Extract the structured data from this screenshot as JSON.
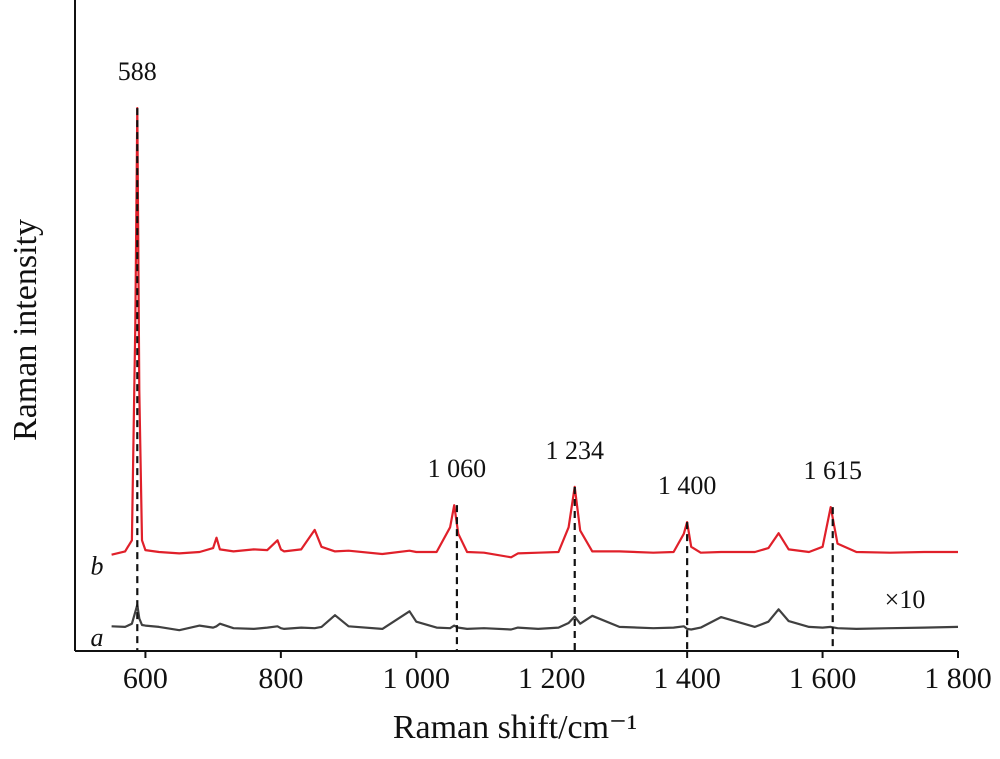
{
  "chart_data": {
    "type": "line",
    "x_label": "Raman shift/cm⁻¹",
    "y_label": "Raman intensity",
    "x": [
      550,
      570,
      580,
      585,
      588,
      591,
      595,
      600,
      620,
      650,
      680,
      700,
      705,
      710,
      730,
      760,
      780,
      795,
      800,
      805,
      830,
      850,
      860,
      880,
      900,
      950,
      990,
      1000,
      1030,
      1050,
      1056,
      1062,
      1075,
      1100,
      1140,
      1150,
      1180,
      1210,
      1225,
      1234,
      1242,
      1260,
      1300,
      1350,
      1380,
      1395,
      1400,
      1406,
      1420,
      1450,
      1500,
      1520,
      1535,
      1550,
      1580,
      1600,
      1612,
      1622,
      1650,
      1700,
      1750,
      1800
    ],
    "series": [
      {
        "name": "b",
        "color": "#e0202a",
        "values": [
          14.8,
          15.3,
          17,
          50,
          83.4,
          40,
          17,
          15.5,
          15.2,
          15,
          15.2,
          15.8,
          17.4,
          15.6,
          15.3,
          15.6,
          15.5,
          17,
          15.6,
          15.3,
          15.6,
          18.6,
          16,
          15.3,
          15.4,
          14.9,
          15.4,
          15.2,
          15.2,
          19,
          22.4,
          18,
          15.2,
          15.1,
          14.4,
          15,
          15.1,
          15.2,
          19,
          25.2,
          18.5,
          15.3,
          15.3,
          15.1,
          15.2,
          18,
          19.8,
          16,
          15.1,
          15.2,
          15.2,
          15.8,
          18.1,
          15.6,
          15.2,
          16,
          22.1,
          16.5,
          15.2,
          15.1,
          15.2,
          15.2
        ]
      },
      {
        "name": "a",
        "color": "#404040",
        "values": [
          3.8,
          3.7,
          4.2,
          6,
          7.1,
          5,
          4,
          3.9,
          3.7,
          3.2,
          3.9,
          3.6,
          3.8,
          4.2,
          3.5,
          3.4,
          3.6,
          3.8,
          3.5,
          3.4,
          3.6,
          3.5,
          3.7,
          5.5,
          3.8,
          3.4,
          6.1,
          4.5,
          3.6,
          3.5,
          3.9,
          3.6,
          3.4,
          3.5,
          3.3,
          3.6,
          3.4,
          3.6,
          4.3,
          5.3,
          4.2,
          5.4,
          3.7,
          3.5,
          3.6,
          3.8,
          3.4,
          3.3,
          3.6,
          5.2,
          3.7,
          4.5,
          6.4,
          4.6,
          3.7,
          3.6,
          3.7,
          3.5,
          3.4,
          3.5,
          3.6,
          3.7
        ]
      }
    ],
    "xlim": [
      496,
      1800
    ],
    "xticks": [
      600,
      800,
      {
        "value": 1000,
        "label": "1 000"
      },
      {
        "value": 1200,
        "label": "1 200"
      },
      {
        "value": 1400,
        "label": "1 400"
      },
      {
        "value": 1600,
        "label": "1 600"
      },
      {
        "value": 1800,
        "label": "1 800"
      }
    ],
    "ylim": [
      0,
      100
    ],
    "annotations": [
      {
        "text": "588",
        "x": 588
      },
      {
        "text": "1 060",
        "x": 1060
      },
      {
        "text": "1 234",
        "x": 1234
      },
      {
        "text": "1 400",
        "x": 1400
      },
      {
        "text": "1 615",
        "x": 1615
      }
    ],
    "scale_note": "×10"
  }
}
